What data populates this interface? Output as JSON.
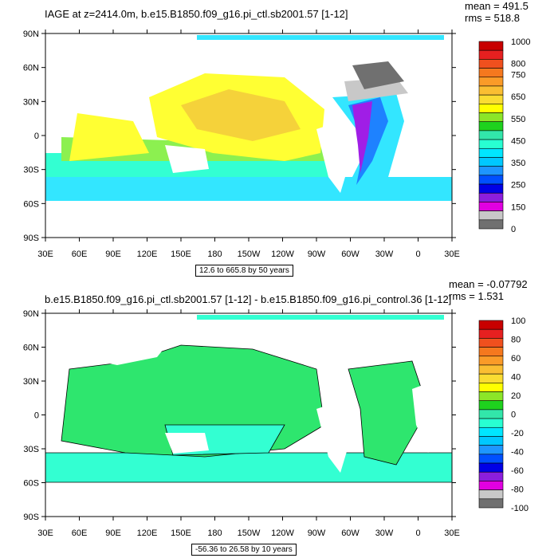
{
  "axes": {
    "lat_labels": [
      "90N",
      "60N",
      "30N",
      "0",
      "30S",
      "60S",
      "90S"
    ],
    "lon_labels": [
      "30E",
      "60E",
      "90E",
      "120E",
      "150E",
      "180",
      "150W",
      "120W",
      "90W",
      "60W",
      "30W",
      "0",
      "30E"
    ]
  },
  "panels": [
    {
      "title": "IAGE at z=2414.0m, b.e15.B1850.f09_g16.pi_ctl.sb2001.57 [1-12]",
      "mean": "mean = 491.5",
      "rms": "rms = 518.8",
      "range": "12.6 to 665.8 by 50 years",
      "colorbar": {
        "labels": [
          "1000",
          "",
          "800",
          "750",
          "",
          "650",
          "",
          "550",
          "",
          "450",
          "",
          "350",
          "",
          "250",
          "",
          "150",
          "",
          "0"
        ],
        "colors": [
          "#c80000",
          "#e62020",
          "#f0501e",
          "#f5781e",
          "#fa9b28",
          "#fabe32",
          "#fadc32",
          "#ffff00",
          "#8ce628",
          "#1ed21e",
          "#32e6aa",
          "#28ffd2",
          "#00e6ff",
          "#00c8ff",
          "#1e96ff",
          "#0050ff",
          "#0000e6",
          "#8c1edc",
          "#e100e1",
          "#c8c8c8",
          "#707070"
        ]
      },
      "colors": {
        "land": "#ffffff",
        "pacific": "#ffff33",
        "warm": "#f5d23a",
        "green": "#8cf050",
        "cyan": "#33ffd2",
        "lightblue": "#33e6ff",
        "blue": "#1e82ff",
        "deepblue": "#0000d2",
        "purple": "#a01ee6",
        "gray": "#707070",
        "lightgray": "#c8c8c8"
      }
    },
    {
      "title": "b.e15.B1850.f09_g16.pi_ctl.sb2001.57 [1-12] - b.e15.B1850.f09_g16.pi_control.36 [1-12]",
      "mean": "mean = -0.07792",
      "rms": "rms = 1.531",
      "range": "-56.36 to 26.58 by 10 years",
      "colorbar": {
        "labels": [
          "100",
          "80",
          "60",
          "40",
          "20",
          "0",
          "-20",
          "-40",
          "-60",
          "-80",
          "-100"
        ],
        "colors": [
          "#c80000",
          "#e62020",
          "#f0501e",
          "#f5781e",
          "#fa9b28",
          "#fabe32",
          "#fadc32",
          "#ffff00",
          "#8ce628",
          "#1ed21e",
          "#32e6aa",
          "#28ffd2",
          "#00e6ff",
          "#00c8ff",
          "#1e96ff",
          "#0050ff",
          "#0000e6",
          "#8c1edc",
          "#e100e1",
          "#c8c8c8",
          "#707070"
        ]
      },
      "colors": {
        "green": "#2ee66e",
        "cyan": "#33ffd2"
      }
    }
  ]
}
